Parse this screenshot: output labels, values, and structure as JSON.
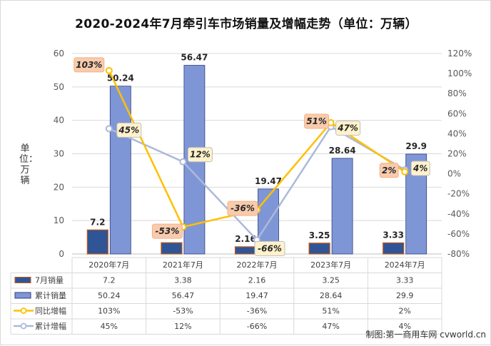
{
  "chart_data": {
    "type": "bar",
    "title": "2020-2024年7月牵引车市场销量及增幅走势（单位：万辆）",
    "ylabel": "单位：万辆",
    "categories": [
      "2020年7月",
      "2021年7月",
      "2022年7月",
      "2023年7月",
      "2024年7月"
    ],
    "ylim": [
      0,
      60
    ],
    "y_ticks": [
      "0",
      "10",
      "20",
      "30",
      "40",
      "50",
      "60"
    ],
    "y2lim": [
      -80,
      120
    ],
    "y2_ticks": [
      "-80%",
      "-60%",
      "-40%",
      "-20%",
      "0%",
      "20%",
      "40%",
      "60%",
      "80%",
      "100%",
      "120%"
    ],
    "grid": true,
    "series": [
      {
        "name": "7月销量",
        "kind": "bar",
        "axis": "left",
        "color": "#2f5597",
        "values": [
          7.2,
          3.38,
          2.16,
          3.25,
          3.33
        ],
        "labels": [
          "7.2",
          "3.38",
          "2.16",
          "3.25",
          "3.33"
        ],
        "table": [
          "7.2",
          "3.38",
          "2.16",
          "3.25",
          "3.33"
        ]
      },
      {
        "name": "累计销量",
        "kind": "bar",
        "axis": "left",
        "color": "#7f96d6",
        "values": [
          50.24,
          56.47,
          19.47,
          28.64,
          29.9
        ],
        "labels": [
          "50.24",
          "56.47",
          "19.47",
          "28.64",
          "29.9"
        ],
        "table": [
          "50.24",
          "56.47",
          "19.47",
          "28.64",
          "29.9"
        ]
      },
      {
        "name": "同比增幅",
        "kind": "line",
        "axis": "right",
        "color": "#ffc000",
        "values": [
          103,
          -53,
          -36,
          51,
          2
        ],
        "labels": [
          "103%",
          "-53%",
          "-36%",
          "51%",
          "2%"
        ],
        "table": [
          "103%",
          "-53%",
          "-36%",
          "51%",
          "2%"
        ]
      },
      {
        "name": "累计增幅",
        "kind": "line",
        "axis": "right",
        "color": "#adb9d9",
        "values": [
          45,
          12,
          -66,
          47,
          4
        ],
        "labels": [
          "45%",
          "12%",
          "-66%",
          "47%",
          "4%"
        ],
        "table": [
          "45%",
          "12%",
          "-66%",
          "47%",
          "4%"
        ]
      }
    ]
  },
  "credit": "制图:第一商用车网 cvworld.cn"
}
